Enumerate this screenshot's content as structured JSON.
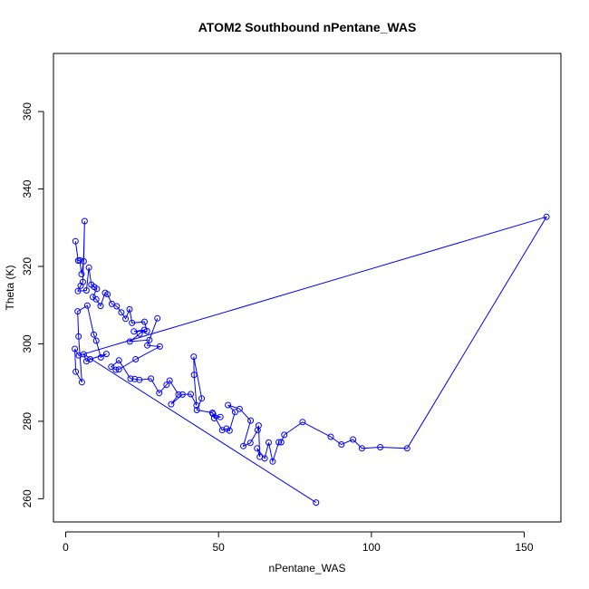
{
  "chart_data": {
    "type": "scatter",
    "title": "ATOM2 Southbound nPentane_WAS",
    "xlabel": "nPentane_WAS",
    "ylabel": "Theta (K)",
    "xlim": [
      -4,
      162
    ],
    "ylim": [
      254,
      375
    ],
    "xticks": [
      0,
      50,
      100,
      150
    ],
    "yticks": [
      260,
      280,
      300,
      320,
      340,
      360
    ],
    "grid": false,
    "legend": "none",
    "color": "#0000ff",
    "series": [
      {
        "points": [
          [
            3.2,
            326.5
          ],
          [
            4.1,
            321.5
          ],
          [
            4.6,
            321.6
          ],
          [
            5.2,
            318.0
          ],
          [
            5.9,
            321.3
          ],
          [
            6.2,
            331.7
          ],
          [
            5.6,
            316.0
          ],
          [
            4.9,
            315.0
          ],
          [
            4.0,
            313.6
          ],
          [
            6.8,
            313.8
          ],
          [
            7.6,
            319.7
          ],
          [
            8.4,
            315.3
          ],
          [
            9.3,
            314.7
          ],
          [
            10.2,
            314.2
          ],
          [
            8.9,
            312.1
          ],
          [
            10.0,
            311.5
          ],
          [
            11.4,
            309.8
          ],
          [
            12.9,
            313.2
          ],
          [
            13.7,
            312.8
          ],
          [
            15.1,
            310.3
          ],
          [
            16.7,
            309.7
          ],
          [
            18.2,
            308.1
          ],
          [
            19.6,
            306.5
          ],
          [
            20.9,
            308.9
          ],
          [
            21.7,
            305.4
          ],
          [
            25.8,
            305.7
          ],
          [
            26.6,
            303.3
          ],
          [
            22.3,
            303.2
          ],
          [
            25.7,
            303.6
          ],
          [
            24.2,
            302.6
          ],
          [
            21.0,
            300.6
          ],
          [
            27.4,
            301.0
          ],
          [
            30.0,
            306.6
          ],
          [
            26.7,
            299.6
          ],
          [
            30.8,
            299.3
          ],
          [
            22.9,
            296.0
          ],
          [
            17.4,
            293.4
          ],
          [
            16.4,
            293.3
          ],
          [
            14.9,
            294.1
          ],
          [
            17.4,
            295.7
          ],
          [
            21.2,
            291.0
          ],
          [
            22.6,
            290.9
          ],
          [
            24.1,
            290.7
          ],
          [
            27.9,
            291.0
          ],
          [
            30.6,
            287.3
          ],
          [
            33.0,
            289.4
          ],
          [
            34.0,
            290.5
          ],
          [
            36.9,
            286.9
          ],
          [
            34.5,
            284.4
          ],
          [
            38.2,
            286.9
          ],
          [
            40.9,
            287.0
          ],
          [
            42.8,
            284.1
          ],
          [
            42.0,
            292.0
          ],
          [
            41.9,
            296.7
          ],
          [
            44.5,
            285.9
          ],
          [
            42.9,
            282.9
          ],
          [
            48.0,
            282.2
          ],
          [
            48.6,
            280.8
          ],
          [
            50.6,
            281.1
          ],
          [
            48.2,
            281.9
          ],
          [
            51.2,
            277.7
          ],
          [
            52.6,
            278.1
          ],
          [
            53.6,
            277.6
          ],
          [
            55.4,
            282.4
          ],
          [
            53.1,
            284.2
          ],
          [
            56.9,
            283.2
          ],
          [
            60.5,
            280.2
          ],
          [
            58.1,
            273.6
          ],
          [
            60.4,
            274.4
          ],
          [
            62.8,
            277.7
          ],
          [
            63.1,
            278.9
          ],
          [
            63.5,
            270.8
          ],
          [
            62.6,
            273.0
          ],
          [
            65.1,
            270.4
          ],
          [
            66.4,
            274.5
          ],
          [
            67.7,
            269.6
          ],
          [
            69.7,
            274.6
          ],
          [
            70.5,
            274.6
          ],
          [
            71.5,
            276.5
          ],
          [
            77.5,
            279.8
          ],
          [
            86.7,
            276.0
          ],
          [
            90.2,
            274.0
          ],
          [
            94.0,
            275.3
          ],
          [
            96.9,
            273.0
          ],
          [
            102.9,
            273.3
          ],
          [
            111.7,
            273.0
          ],
          [
            157.3,
            332.8
          ],
          [
            4.3,
            297.0
          ],
          [
            3.0,
            298.7
          ],
          [
            3.3,
            292.8
          ],
          [
            5.3,
            290.1
          ],
          [
            4.2,
            301.9
          ],
          [
            3.9,
            308.4
          ],
          [
            7.1,
            309.9
          ],
          [
            9.2,
            302.4
          ],
          [
            10.0,
            300.8
          ],
          [
            11.5,
            296.5
          ],
          [
            13.3,
            297.4
          ],
          [
            8.0,
            296.0
          ],
          [
            6.8,
            295.5
          ],
          [
            5.9,
            297.3
          ],
          [
            81.9,
            259.0
          ]
        ]
      }
    ]
  }
}
